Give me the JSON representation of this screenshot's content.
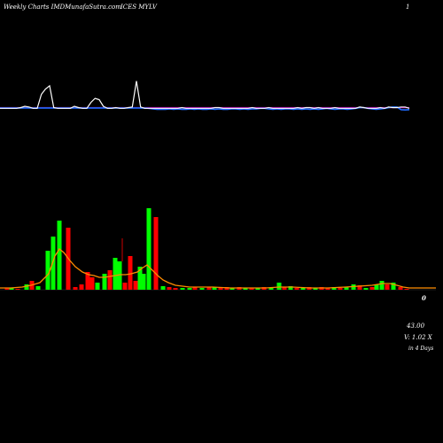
{
  "header": {
    "site": "Weekly Charts IMDMunafaSutra.com",
    "ticker": "ICES MYLV",
    "corner": "1"
  },
  "right_labels": {
    "marker": "0",
    "price": "43.00",
    "volume": "V: 1.02  X",
    "days": "in  4  Days"
  },
  "colors": {
    "background": "#000000",
    "up": "#00ff00",
    "down": "#ff0000",
    "ma": "#ff8c00",
    "white_line": "#ffffff",
    "blue_line": "#1e6bff",
    "magenta_line": "#b000b0"
  },
  "chart_data": [
    {
      "type": "line",
      "panel": "indicator",
      "series": [
        {
          "color": "white",
          "values": [
            1,
            1,
            1,
            1,
            1,
            2,
            4,
            3,
            1,
            1,
            22,
            30,
            35,
            2,
            1,
            1,
            1,
            1,
            4,
            2,
            1,
            1,
            10,
            16,
            14,
            4,
            1,
            1,
            2,
            1,
            1,
            2,
            3,
            42,
            3,
            1,
            1,
            1,
            1,
            1,
            1,
            1,
            1,
            1,
            2,
            1,
            1,
            1,
            1,
            1,
            1,
            1,
            2,
            2,
            1,
            1,
            1,
            1,
            1,
            1,
            1,
            2,
            1,
            1,
            1,
            2,
            1,
            1,
            1,
            1,
            1,
            1,
            2,
            1,
            2,
            2,
            1,
            2,
            1,
            1,
            1,
            2,
            1,
            1,
            1,
            1,
            1,
            3,
            2,
            1,
            1,
            1,
            2,
            1,
            3,
            2,
            2,
            3,
            3,
            1
          ]
        },
        {
          "color": "blue",
          "values": [
            1.5,
            1.5,
            1.5,
            1.5,
            1.5,
            1.5,
            1.5,
            1.5,
            1.5,
            1.5,
            1.5,
            1.5,
            1.5,
            1.5,
            1.5,
            1.5,
            1.5,
            1.5,
            1.5,
            1.5,
            1.5,
            1.5,
            1.5,
            1.5,
            1.5,
            1.5,
            1.5,
            1.5,
            1.5,
            1.5,
            1.5,
            1.5,
            1.5,
            1.5,
            1.5,
            1.5,
            1,
            0,
            -0.5,
            -0.5,
            -0.5,
            0,
            -0.5,
            0,
            -0.5,
            -0.5,
            0,
            -0.5,
            0,
            -0.5,
            -0.5,
            0,
            -0.5,
            0,
            -0.5,
            -0.5,
            0,
            0,
            -0.5,
            0,
            -0.5,
            0,
            0,
            1,
            1,
            0,
            -0.5,
            0,
            -0.5,
            0,
            0,
            -0.5,
            0,
            -0.5,
            0,
            -0.5,
            0,
            -0.5,
            0,
            1,
            0,
            -0.5,
            0,
            0,
            -0.5,
            0,
            1,
            2,
            2,
            1,
            0,
            -0.5,
            0,
            1,
            2,
            3,
            3,
            -1,
            -1.5,
            -1
          ]
        },
        {
          "color": "magenta",
          "values": [
            2,
            2,
            2,
            2,
            2,
            2,
            2,
            2,
            2,
            2,
            2,
            2,
            2,
            2,
            2,
            2,
            2,
            2,
            2,
            2,
            2,
            2,
            2,
            2,
            2,
            2,
            2,
            2,
            2,
            2,
            2,
            2,
            2,
            2,
            2,
            2,
            2,
            2,
            2,
            2,
            2,
            2,
            2,
            2,
            2,
            2,
            2,
            2,
            2,
            2,
            2,
            2,
            2,
            2,
            2,
            2,
            2,
            2,
            2,
            2,
            2,
            2,
            2,
            2,
            2,
            2,
            2,
            2,
            2,
            2,
            2,
            2,
            2,
            2,
            2,
            2,
            2,
            2,
            2,
            2,
            2,
            2,
            2,
            2,
            2,
            2,
            2,
            2,
            2,
            2,
            2,
            2,
            2,
            2,
            2,
            2,
            2,
            2,
            2,
            2
          ]
        }
      ]
    },
    {
      "type": "bar",
      "panel": "volume",
      "bars": [
        {
          "x": 8,
          "h": 2,
          "c": "down"
        },
        {
          "x": 13,
          "h": 2,
          "c": "up"
        },
        {
          "x": 20,
          "h": 1,
          "c": "down"
        },
        {
          "x": 30,
          "h": 6,
          "c": "up"
        },
        {
          "x": 36,
          "h": 10,
          "c": "down"
        },
        {
          "x": 43,
          "h": 4,
          "c": "up"
        },
        {
          "x": 54,
          "h": 44,
          "c": "up"
        },
        {
          "x": 60,
          "h": 60,
          "c": "up"
        },
        {
          "x": 67,
          "h": 78,
          "c": "up"
        },
        {
          "x": 77,
          "h": 70,
          "c": "down"
        },
        {
          "x": 85,
          "h": 3,
          "c": "down"
        },
        {
          "x": 92,
          "h": 6,
          "c": "down"
        },
        {
          "x": 99,
          "h": 20,
          "c": "down"
        },
        {
          "x": 104,
          "h": 14,
          "c": "down"
        },
        {
          "x": 110,
          "h": 8,
          "c": "up"
        },
        {
          "x": 118,
          "h": 18,
          "c": "up"
        },
        {
          "x": 124,
          "h": 22,
          "c": "down"
        },
        {
          "x": 130,
          "h": 36,
          "c": "up"
        },
        {
          "x": 135,
          "h": 32,
          "c": "up"
        },
        {
          "x": 141,
          "h": 8,
          "c": "down"
        },
        {
          "x": 147,
          "h": 38,
          "c": "down"
        },
        {
          "x": 153,
          "h": 10,
          "c": "down"
        },
        {
          "x": 158,
          "h": 26,
          "c": "up"
        },
        {
          "x": 162,
          "h": 18,
          "c": "up"
        },
        {
          "x": 168,
          "h": 92,
          "c": "up"
        },
        {
          "x": 176,
          "h": 82,
          "c": "down"
        },
        {
          "x": 184,
          "h": 4,
          "c": "up"
        },
        {
          "x": 191,
          "h": 3,
          "c": "down"
        },
        {
          "x": 198,
          "h": 2,
          "c": "down"
        },
        {
          "x": 206,
          "h": 2,
          "c": "up"
        },
        {
          "x": 214,
          "h": 2,
          "c": "up"
        },
        {
          "x": 220,
          "h": 3,
          "c": "down"
        },
        {
          "x": 228,
          "h": 2,
          "c": "up"
        },
        {
          "x": 236,
          "h": 3,
          "c": "down"
        },
        {
          "x": 242,
          "h": 3,
          "c": "up"
        },
        {
          "x": 249,
          "h": 2,
          "c": "down"
        },
        {
          "x": 256,
          "h": 3,
          "c": "down"
        },
        {
          "x": 262,
          "h": 2,
          "c": "up"
        },
        {
          "x": 270,
          "h": 3,
          "c": "down"
        },
        {
          "x": 277,
          "h": 2,
          "c": "up"
        },
        {
          "x": 284,
          "h": 2,
          "c": "down"
        },
        {
          "x": 291,
          "h": 2,
          "c": "up"
        },
        {
          "x": 298,
          "h": 3,
          "c": "down"
        },
        {
          "x": 306,
          "h": 2,
          "c": "up"
        },
        {
          "x": 315,
          "h": 8,
          "c": "up"
        },
        {
          "x": 321,
          "h": 3,
          "c": "down"
        },
        {
          "x": 328,
          "h": 4,
          "c": "up"
        },
        {
          "x": 335,
          "h": 2,
          "c": "down"
        },
        {
          "x": 342,
          "h": 2,
          "c": "up"
        },
        {
          "x": 349,
          "h": 3,
          "c": "down"
        },
        {
          "x": 356,
          "h": 2,
          "c": "up"
        },
        {
          "x": 363,
          "h": 3,
          "c": "down"
        },
        {
          "x": 370,
          "h": 2,
          "c": "down"
        },
        {
          "x": 377,
          "h": 3,
          "c": "up"
        },
        {
          "x": 384,
          "h": 2,
          "c": "down"
        },
        {
          "x": 391,
          "h": 3,
          "c": "up"
        },
        {
          "x": 399,
          "h": 6,
          "c": "up"
        },
        {
          "x": 406,
          "h": 5,
          "c": "down"
        },
        {
          "x": 413,
          "h": 2,
          "c": "up"
        },
        {
          "x": 420,
          "h": 3,
          "c": "down"
        },
        {
          "x": 425,
          "h": 6,
          "c": "up"
        },
        {
          "x": 431,
          "h": 10,
          "c": "up"
        },
        {
          "x": 437,
          "h": 6,
          "c": "down"
        },
        {
          "x": 444,
          "h": 8,
          "c": "up"
        },
        {
          "x": 452,
          "h": 3,
          "c": "down"
        },
        {
          "x": 459,
          "h": 1,
          "c": "down"
        }
      ],
      "ma": [
        [
          0,
          2
        ],
        [
          12,
          2
        ],
        [
          25,
          3
        ],
        [
          35,
          5
        ],
        [
          45,
          8
        ],
        [
          55,
          18
        ],
        [
          62,
          38
        ],
        [
          67,
          46
        ],
        [
          72,
          42
        ],
        [
          78,
          34
        ],
        [
          85,
          26
        ],
        [
          93,
          20
        ],
        [
          100,
          17
        ],
        [
          106,
          16
        ],
        [
          112,
          14
        ],
        [
          118,
          14
        ],
        [
          124,
          15
        ],
        [
          130,
          16
        ],
        [
          136,
          17
        ],
        [
          142,
          17
        ],
        [
          148,
          18
        ],
        [
          155,
          20
        ],
        [
          160,
          24
        ],
        [
          166,
          28
        ],
        [
          172,
          22
        ],
        [
          178,
          16
        ],
        [
          184,
          11
        ],
        [
          190,
          8
        ],
        [
          198,
          5
        ],
        [
          206,
          4
        ],
        [
          214,
          3
        ],
        [
          222,
          3
        ],
        [
          240,
          3
        ],
        [
          260,
          2
        ],
        [
          280,
          2
        ],
        [
          300,
          2
        ],
        [
          315,
          3
        ],
        [
          330,
          3
        ],
        [
          350,
          2
        ],
        [
          370,
          2
        ],
        [
          390,
          3
        ],
        [
          405,
          4
        ],
        [
          420,
          5
        ],
        [
          432,
          7
        ],
        [
          440,
          7
        ],
        [
          448,
          5
        ],
        [
          455,
          3
        ],
        [
          462,
          2
        ],
        [
          475,
          2
        ],
        [
          492,
          2
        ]
      ]
    }
  ]
}
